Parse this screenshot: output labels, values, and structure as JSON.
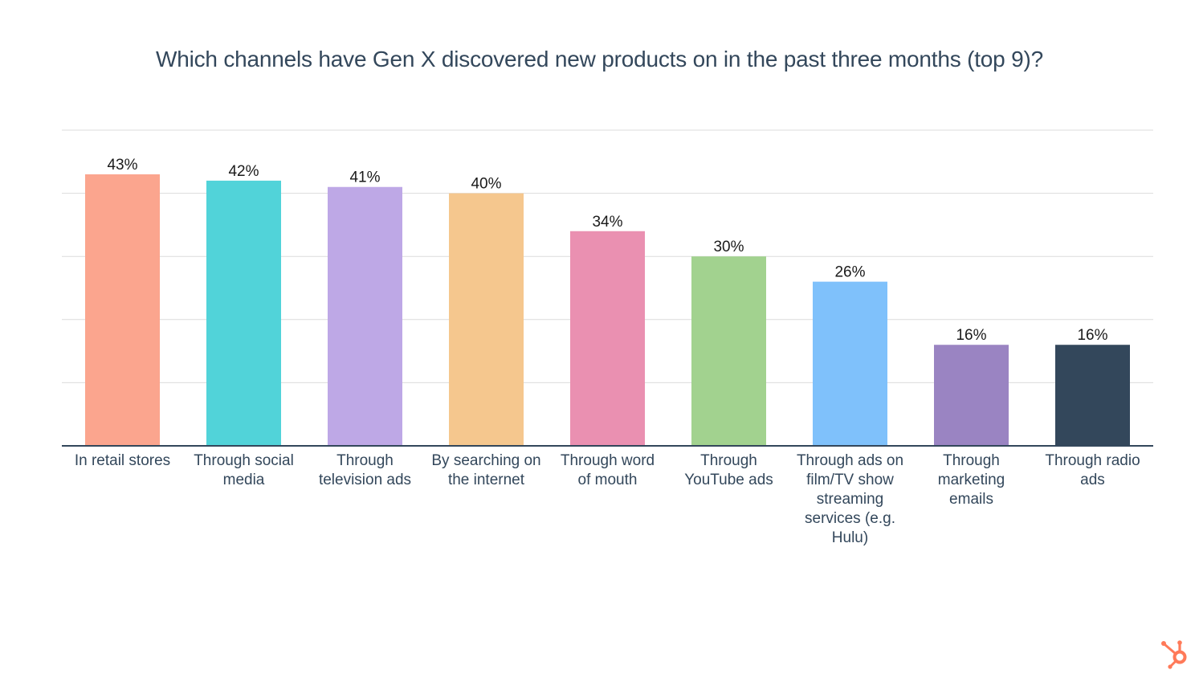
{
  "chart_data": {
    "type": "bar",
    "title": "Which channels have Gen X discovered new products on in the past three months (top 9)?",
    "xlabel": "",
    "ylabel": "",
    "ylim": [
      0,
      50
    ],
    "grid": true,
    "legend": "none",
    "categories": [
      "In retail stores",
      "Through social media",
      "Through television ads",
      "By searching on the internet",
      "Through word of mouth",
      "Through YouTube ads",
      "Through ads on film/TV show streaming services (e.g. Hulu)",
      "Through marketing emails",
      "Through radio ads"
    ],
    "category_lines": [
      [
        "In retail stores"
      ],
      [
        "Through social",
        "media"
      ],
      [
        "Through",
        "television ads"
      ],
      [
        "By searching on",
        "the internet"
      ],
      [
        "Through word",
        "of mouth"
      ],
      [
        "Through",
        "YouTube ads"
      ],
      [
        "Through ads on",
        "film/TV show",
        "streaming",
        "services (e.g.",
        "Hulu)"
      ],
      [
        "Through",
        "marketing",
        "emails"
      ],
      [
        "Through radio",
        "ads"
      ]
    ],
    "values": [
      43,
      42,
      41,
      40,
      34,
      30,
      26,
      16,
      16
    ],
    "value_labels": [
      "43%",
      "42%",
      "41%",
      "40%",
      "34%",
      "30%",
      "26%",
      "16%",
      "16%"
    ],
    "colors": [
      "#fba58e",
      "#51d3d9",
      "#bea8e6",
      "#f5c78e",
      "#ea90b1",
      "#a2d28f",
      "#7fc1fb",
      "#9a84c2",
      "#33475b"
    ]
  },
  "brand": {
    "logo_icon": "hubspot-sprocket-icon",
    "accent": "#ff7a59"
  }
}
